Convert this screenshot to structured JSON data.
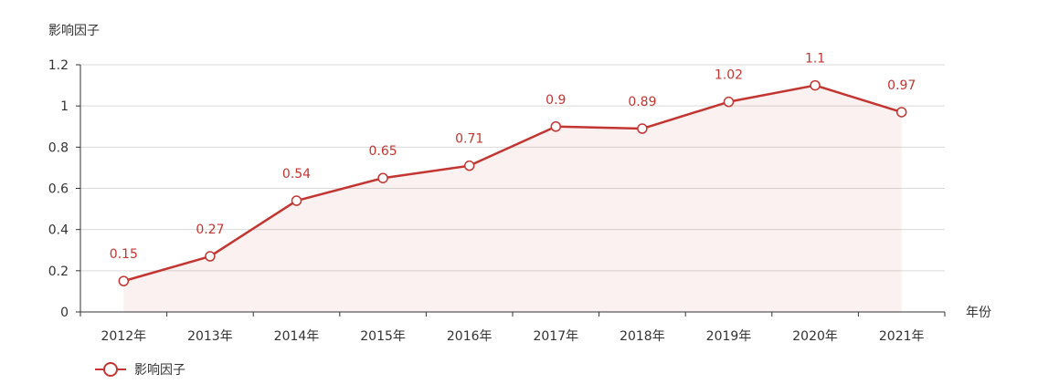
{
  "chart_data": {
    "type": "area",
    "ylabel": "影响因子",
    "xlabel": "年份",
    "categories": [
      "2012年",
      "2013年",
      "2014年",
      "2015年",
      "2016年",
      "2017年",
      "2018年",
      "2019年",
      "2020年",
      "2021年"
    ],
    "series": [
      {
        "name": "影响因子",
        "values": [
          0.15,
          0.27,
          0.54,
          0.65,
          0.71,
          0.9,
          0.89,
          1.02,
          1.1,
          0.97
        ],
        "value_labels": [
          "0.15",
          "0.27",
          "0.54",
          "0.65",
          "0.71",
          "0.9",
          "0.89",
          "1.02",
          "1.1",
          "0.97"
        ]
      }
    ],
    "ylim": [
      0,
      1.2
    ],
    "yticks": [
      0,
      0.2,
      0.4,
      0.6,
      0.8,
      1,
      1.2
    ],
    "ytick_labels": [
      "0",
      "0.2",
      "0.4",
      "0.6",
      "0.8",
      "1",
      "1.2"
    ],
    "grid": true,
    "legend_position": "bottom-left",
    "colors": {
      "line": "#c23531",
      "area": "#c23531",
      "grid": "#d9d9d9",
      "axis": "#333333"
    }
  }
}
